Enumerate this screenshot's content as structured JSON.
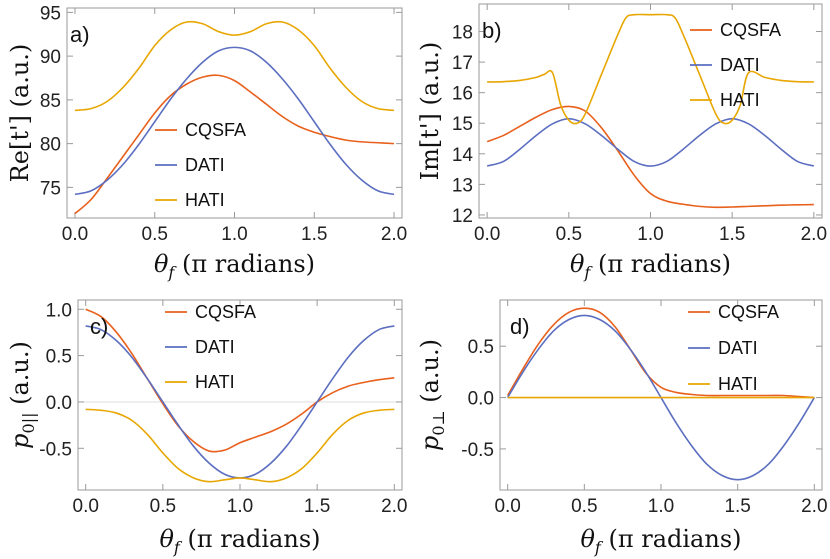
{
  "colors": {
    "CQSFA": "#e8601c",
    "DATI": "#5b6ec0",
    "HATI": "#e8a600",
    "frame": "#9a9a9a",
    "zero": "#dddddd"
  },
  "chart_data": [
    {
      "type": "line",
      "panel_label": "a)",
      "ylabel": "Re[t']",
      "ylabel_unit": "(a.u.)",
      "xlabel": {
        "var": "θ",
        "sub": "f",
        "unit": "(π radians)"
      },
      "xlim": [
        -0.05,
        2.05
      ],
      "ylim": [
        71.5,
        95.5
      ],
      "xticks": [
        0.0,
        0.5,
        1.0,
        1.5,
        2.0
      ],
      "xtick_labels": [
        "0.0",
        "0.5",
        "1.0",
        "1.5",
        "2.0"
      ],
      "yticks": [
        75,
        80,
        85,
        90,
        95
      ],
      "ytick_labels": [
        "75",
        "80",
        "85",
        "90",
        "95"
      ],
      "zero_line": false,
      "legend_position": "middle-center",
      "series": [
        {
          "name": "CQSFA",
          "x": [
            0,
            0.1,
            0.2,
            0.3,
            0.4,
            0.5,
            0.6,
            0.7,
            0.8,
            0.9,
            1.0,
            1.1,
            1.2,
            1.3,
            1.4,
            1.5,
            1.6,
            1.7,
            1.8,
            1.9,
            2.0
          ],
          "y": [
            72.0,
            73.6,
            76.0,
            78.5,
            81.0,
            83.5,
            85.5,
            86.8,
            87.6,
            87.8,
            87.2,
            85.9,
            84.5,
            83.1,
            82.0,
            81.3,
            80.8,
            80.4,
            80.2,
            80.1,
            80.0
          ]
        },
        {
          "name": "DATI",
          "x": [
            0,
            0.1,
            0.2,
            0.3,
            0.4,
            0.5,
            0.6,
            0.7,
            0.8,
            0.9,
            1.0,
            1.1,
            1.2,
            1.3,
            1.4,
            1.5,
            1.6,
            1.7,
            1.8,
            1.9,
            2.0
          ],
          "y": [
            74.2,
            74.6,
            75.8,
            77.6,
            79.9,
            82.5,
            85.1,
            87.4,
            89.3,
            90.6,
            91.0,
            90.6,
            89.3,
            87.4,
            85.1,
            82.5,
            79.9,
            77.6,
            75.8,
            74.6,
            74.2
          ]
        },
        {
          "name": "HATI",
          "x": [
            0,
            0.1,
            0.2,
            0.3,
            0.4,
            0.5,
            0.6,
            0.7,
            0.8,
            0.9,
            1.0,
            1.1,
            1.2,
            1.3,
            1.4,
            1.5,
            1.6,
            1.7,
            1.8,
            1.9,
            2.0
          ],
          "y": [
            83.8,
            84.0,
            84.8,
            86.4,
            88.6,
            91.2,
            93.0,
            93.9,
            93.7,
            92.8,
            92.4,
            92.8,
            93.7,
            93.9,
            93.0,
            91.2,
            88.6,
            86.4,
            84.8,
            84.0,
            83.8
          ]
        }
      ]
    },
    {
      "type": "line",
      "panel_label": "b)",
      "ylabel": "Im[t']",
      "ylabel_unit": "(a.u.)",
      "xlabel": {
        "var": "θ",
        "sub": "f",
        "unit": "(π radians)"
      },
      "xlim": [
        -0.05,
        2.05
      ],
      "ylim": [
        11.9,
        18.9
      ],
      "xticks": [
        0.0,
        0.5,
        1.0,
        1.5,
        2.0
      ],
      "xtick_labels": [
        "0.0",
        "0.5",
        "1.0",
        "1.5",
        "2.0"
      ],
      "yticks": [
        12,
        13,
        14,
        15,
        16,
        17,
        18
      ],
      "ytick_labels": [
        "12",
        "13",
        "14",
        "15",
        "16",
        "17",
        "18"
      ],
      "zero_line": false,
      "legend_position": "top-right",
      "series": [
        {
          "name": "CQSFA",
          "x": [
            0,
            0.1,
            0.2,
            0.3,
            0.4,
            0.5,
            0.6,
            0.7,
            0.8,
            0.9,
            1.0,
            1.1,
            1.2,
            1.3,
            1.4,
            1.5,
            1.6,
            1.7,
            1.8,
            1.9,
            2.0
          ],
          "y": [
            14.4,
            14.6,
            14.9,
            15.2,
            15.45,
            15.55,
            15.4,
            14.85,
            14.1,
            13.3,
            12.7,
            12.45,
            12.35,
            12.28,
            12.25,
            12.26,
            12.28,
            12.3,
            12.32,
            12.33,
            12.34
          ]
        },
        {
          "name": "DATI",
          "x": [
            0,
            0.1,
            0.2,
            0.3,
            0.4,
            0.5,
            0.6,
            0.7,
            0.8,
            0.9,
            1.0,
            1.1,
            1.2,
            1.3,
            1.4,
            1.5,
            1.6,
            1.7,
            1.8,
            1.9,
            2.0
          ],
          "y": [
            13.6,
            13.75,
            14.15,
            14.6,
            14.98,
            15.15,
            14.98,
            14.6,
            14.15,
            13.75,
            13.6,
            13.75,
            14.15,
            14.6,
            14.98,
            15.15,
            14.98,
            14.6,
            14.15,
            13.75,
            13.6
          ]
        },
        {
          "name": "HATI",
          "x": [
            0,
            0.1,
            0.2,
            0.3,
            0.35,
            0.4,
            0.45,
            0.5,
            0.55,
            0.6,
            0.7,
            0.8,
            0.85,
            0.9,
            1.0,
            1.1,
            1.15,
            1.2,
            1.3,
            1.4,
            1.45,
            1.5,
            1.55,
            1.6,
            1.7,
            1.8,
            1.9,
            2.0
          ],
          "y": [
            16.35,
            16.36,
            16.4,
            16.5,
            16.6,
            16.65,
            15.6,
            15.1,
            15.0,
            15.3,
            16.6,
            17.9,
            18.45,
            18.55,
            18.55,
            18.55,
            18.45,
            17.9,
            16.6,
            15.3,
            15.0,
            15.1,
            15.6,
            16.65,
            16.5,
            16.4,
            16.36,
            16.35
          ]
        }
      ]
    },
    {
      "type": "line",
      "panel_label": "c)",
      "ylabel": "p",
      "ylabel_sub": "0||",
      "ylabel_unit": "(a.u.)",
      "xlabel": {
        "var": "θ",
        "sub": "f",
        "unit": "(π radians)"
      },
      "xlim": [
        -0.05,
        2.05
      ],
      "ylim": [
        -0.95,
        1.1
      ],
      "xticks": [
        0.0,
        0.5,
        1.0,
        1.5,
        2.0
      ],
      "xtick_labels": [
        "0.0",
        "0.5",
        "1.0",
        "1.5",
        "2.0"
      ],
      "yticks": [
        -0.5,
        0.0,
        0.5,
        1.0
      ],
      "ytick_labels": [
        "-0.5",
        "0.0",
        "0.5",
        "1.0"
      ],
      "zero_line": true,
      "legend_position": "top-center",
      "series": [
        {
          "name": "CQSFA",
          "x": [
            0,
            0.1,
            0.2,
            0.3,
            0.4,
            0.5,
            0.6,
            0.7,
            0.8,
            0.9,
            1.0,
            1.1,
            1.2,
            1.3,
            1.4,
            1.5,
            1.6,
            1.7,
            1.8,
            1.9,
            2.0
          ],
          "y": [
            1.0,
            0.92,
            0.75,
            0.52,
            0.25,
            -0.02,
            -0.26,
            -0.43,
            -0.53,
            -0.52,
            -0.44,
            -0.38,
            -0.32,
            -0.24,
            -0.13,
            0.0,
            0.1,
            0.17,
            0.21,
            0.24,
            0.26
          ]
        },
        {
          "name": "DATI",
          "x": [
            0,
            0.1,
            0.2,
            0.3,
            0.4,
            0.5,
            0.6,
            0.7,
            0.8,
            0.9,
            1.0,
            1.1,
            1.2,
            1.3,
            1.4,
            1.5,
            1.6,
            1.7,
            1.8,
            1.9,
            2.0
          ],
          "y": [
            0.82,
            0.78,
            0.66,
            0.48,
            0.25,
            0.0,
            -0.25,
            -0.48,
            -0.66,
            -0.78,
            -0.82,
            -0.78,
            -0.66,
            -0.48,
            -0.25,
            0.0,
            0.25,
            0.48,
            0.66,
            0.78,
            0.82
          ]
        },
        {
          "name": "HATI",
          "x": [
            0,
            0.1,
            0.2,
            0.3,
            0.4,
            0.5,
            0.6,
            0.7,
            0.8,
            0.9,
            1.0,
            1.1,
            1.2,
            1.3,
            1.4,
            1.5,
            1.6,
            1.7,
            1.8,
            1.9,
            2.0
          ],
          "y": [
            -0.08,
            -0.09,
            -0.12,
            -0.2,
            -0.35,
            -0.55,
            -0.72,
            -0.82,
            -0.86,
            -0.84,
            -0.82,
            -0.84,
            -0.86,
            -0.82,
            -0.72,
            -0.55,
            -0.35,
            -0.2,
            -0.12,
            -0.09,
            -0.08
          ]
        }
      ]
    },
    {
      "type": "line",
      "panel_label": "d)",
      "ylabel": "p",
      "ylabel_sub": "0⊥",
      "ylabel_unit": "(a.u.)",
      "xlabel": {
        "var": "θ",
        "sub": "f",
        "unit": "(π radians)"
      },
      "xlim": [
        -0.05,
        2.05
      ],
      "ylim": [
        -0.9,
        0.95
      ],
      "xticks": [
        0.0,
        0.5,
        1.0,
        1.5,
        2.0
      ],
      "xtick_labels": [
        "0.0",
        "0.5",
        "1.0",
        "1.5",
        "2.0"
      ],
      "yticks": [
        -0.5,
        0.0,
        0.5
      ],
      "ytick_labels": [
        "-0.5",
        "0.0",
        "0.5"
      ],
      "zero_line": false,
      "legend_position": "top-right",
      "series": [
        {
          "name": "CQSFA",
          "x": [
            0,
            0.1,
            0.2,
            0.3,
            0.4,
            0.5,
            0.6,
            0.7,
            0.8,
            0.9,
            1.0,
            1.1,
            1.2,
            1.3,
            1.4,
            1.5,
            1.6,
            1.7,
            1.8,
            1.9,
            2.0
          ],
          "y": [
            0.02,
            0.28,
            0.52,
            0.71,
            0.83,
            0.87,
            0.83,
            0.69,
            0.47,
            0.24,
            0.1,
            0.05,
            0.03,
            0.02,
            0.02,
            0.02,
            0.02,
            0.02,
            0.02,
            0.01,
            0.0
          ]
        },
        {
          "name": "DATI",
          "x": [
            0,
            0.1,
            0.2,
            0.3,
            0.4,
            0.5,
            0.6,
            0.7,
            0.8,
            0.9,
            1.0,
            1.1,
            1.2,
            1.3,
            1.4,
            1.5,
            1.6,
            1.7,
            1.8,
            1.9,
            2.0
          ],
          "y": [
            0.0,
            0.25,
            0.47,
            0.65,
            0.76,
            0.8,
            0.76,
            0.65,
            0.47,
            0.25,
            0.0,
            -0.25,
            -0.47,
            -0.65,
            -0.76,
            -0.8,
            -0.76,
            -0.65,
            -0.47,
            -0.25,
            0.0
          ]
        },
        {
          "name": "HATI",
          "x": [
            0,
            2.0
          ],
          "y": [
            0.0,
            0.0
          ]
        }
      ]
    }
  ]
}
